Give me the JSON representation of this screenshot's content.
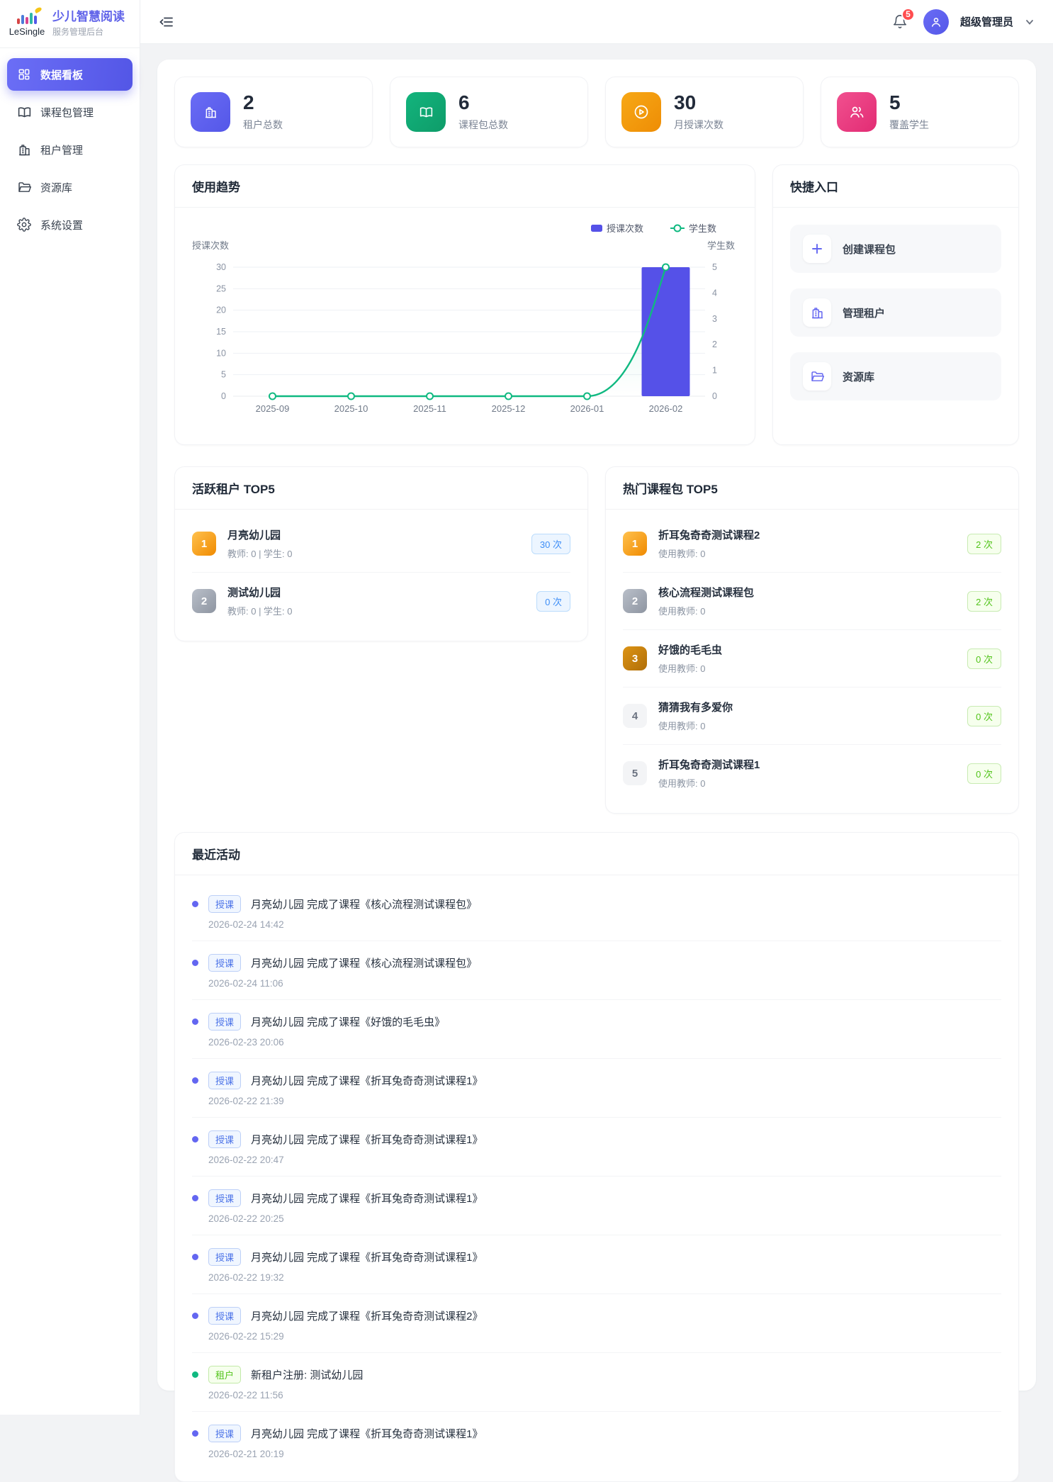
{
  "sidebar": {
    "logo": {
      "brand": "LeSingle",
      "title": "少儿智慧阅读",
      "subtitle": "服务管理后台"
    },
    "items": [
      {
        "label": "数据看板",
        "icon": "dashboard-grid-icon",
        "active": true
      },
      {
        "label": "课程包管理",
        "icon": "open-book-icon",
        "active": false
      },
      {
        "label": "租户管理",
        "icon": "building-icon",
        "active": false
      },
      {
        "label": "资源库",
        "icon": "folder-icon",
        "active": false
      },
      {
        "label": "系统设置",
        "icon": "gear-icon",
        "active": false
      }
    ]
  },
  "topbar": {
    "notification_count": "5",
    "user_name": "超级管理员"
  },
  "stats": [
    {
      "value": "2",
      "label": "租户总数",
      "icon": "building-icon",
      "color_from": "#6A6CF5",
      "color_to": "#5457E8"
    },
    {
      "value": "6",
      "label": "课程包总数",
      "icon": "open-book-icon",
      "color_from": "#13B47D",
      "color_to": "#0E9C69"
    },
    {
      "value": "30",
      "label": "月授课次数",
      "icon": "play-circle-icon",
      "color_from": "#F7A816",
      "color_to": "#EE8D05"
    },
    {
      "value": "5",
      "label": "覆盖学生",
      "icon": "users-icon",
      "color_from": "#F1508F",
      "color_to": "#E22C74"
    }
  ],
  "chart_card": {
    "title": "使用趋势"
  },
  "chart_data": {
    "type": "bar",
    "categories": [
      "2025-09",
      "2025-10",
      "2025-11",
      "2025-12",
      "2026-01",
      "2026-02"
    ],
    "series": [
      {
        "name": "授课次数",
        "type": "bar",
        "axis": "left",
        "values": [
          0,
          0,
          0,
          0,
          0,
          30
        ],
        "color": "#5551E8"
      },
      {
        "name": "学生数",
        "type": "line",
        "axis": "right",
        "values": [
          0,
          0,
          0,
          0,
          0,
          5
        ],
        "color": "#10B981"
      }
    ],
    "left_axis": {
      "name": "授课次数",
      "ticks": [
        0,
        5,
        10,
        15,
        20,
        25,
        30
      ],
      "max": 30
    },
    "right_axis": {
      "name": "学生数",
      "ticks": [
        0,
        1,
        2,
        3,
        4,
        5
      ],
      "max": 5
    },
    "legend_position": "top-right",
    "grid": true
  },
  "quick_entry": {
    "title": "快捷入口",
    "items": [
      {
        "label": "创建课程包",
        "icon": "plus-icon"
      },
      {
        "label": "管理租户",
        "icon": "building-icon"
      },
      {
        "label": "资源库",
        "icon": "folder-icon"
      }
    ]
  },
  "active_tenants": {
    "title": "活跃租户 TOP5",
    "badge_style": "blue",
    "items": [
      {
        "rank": "1",
        "name": "月亮幼儿园",
        "meta": "教师: 0 | 学生: 0",
        "count": "30 次"
      },
      {
        "rank": "2",
        "name": "测试幼儿园",
        "meta": "教师: 0 | 学生: 0",
        "count": "0 次"
      }
    ]
  },
  "hot_packages": {
    "title": "热门课程包 TOP5",
    "badge_style": "green",
    "items": [
      {
        "rank": "1",
        "name": "折耳兔奇奇测试课程2",
        "meta": "使用教师: 0",
        "count": "2 次"
      },
      {
        "rank": "2",
        "name": "核心流程测试课程包",
        "meta": "使用教师: 0",
        "count": "2 次"
      },
      {
        "rank": "3",
        "name": "好饿的毛毛虫",
        "meta": "使用教师: 0",
        "count": "0 次"
      },
      {
        "rank": "4",
        "name": "猜猜我有多爱你",
        "meta": "使用教师: 0",
        "count": "0 次"
      },
      {
        "rank": "5",
        "name": "折耳兔奇奇测试课程1",
        "meta": "使用教师: 0",
        "count": "0 次"
      }
    ]
  },
  "recent_activity": {
    "title": "最近活动",
    "items": [
      {
        "tag": "授课",
        "tag_type": "blue",
        "text": "月亮幼儿园 完成了课程《核心流程测试课程包》",
        "time": "2026-02-24 14:42"
      },
      {
        "tag": "授课",
        "tag_type": "blue",
        "text": "月亮幼儿园 完成了课程《核心流程测试课程包》",
        "time": "2026-02-24 11:06"
      },
      {
        "tag": "授课",
        "tag_type": "blue",
        "text": "月亮幼儿园 完成了课程《好饿的毛毛虫》",
        "time": "2026-02-23 20:06"
      },
      {
        "tag": "授课",
        "tag_type": "blue",
        "text": "月亮幼儿园 完成了课程《折耳兔奇奇测试课程1》",
        "time": "2026-02-22 21:39"
      },
      {
        "tag": "授课",
        "tag_type": "blue",
        "text": "月亮幼儿园 完成了课程《折耳兔奇奇测试课程1》",
        "time": "2026-02-22 20:47"
      },
      {
        "tag": "授课",
        "tag_type": "blue",
        "text": "月亮幼儿园 完成了课程《折耳兔奇奇测试课程1》",
        "time": "2026-02-22 20:25"
      },
      {
        "tag": "授课",
        "tag_type": "blue",
        "text": "月亮幼儿园 完成了课程《折耳兔奇奇测试课程1》",
        "time": "2026-02-22 19:32"
      },
      {
        "tag": "授课",
        "tag_type": "blue",
        "text": "月亮幼儿园 完成了课程《折耳兔奇奇测试课程2》",
        "time": "2026-02-22 15:29"
      },
      {
        "tag": "租户",
        "tag_type": "green",
        "text": "新租户注册: 测试幼儿园",
        "time": "2026-02-22 11:56"
      },
      {
        "tag": "授课",
        "tag_type": "blue",
        "text": "月亮幼儿园 完成了课程《折耳兔奇奇测试课程1》",
        "time": "2026-02-21 20:19"
      }
    ]
  }
}
